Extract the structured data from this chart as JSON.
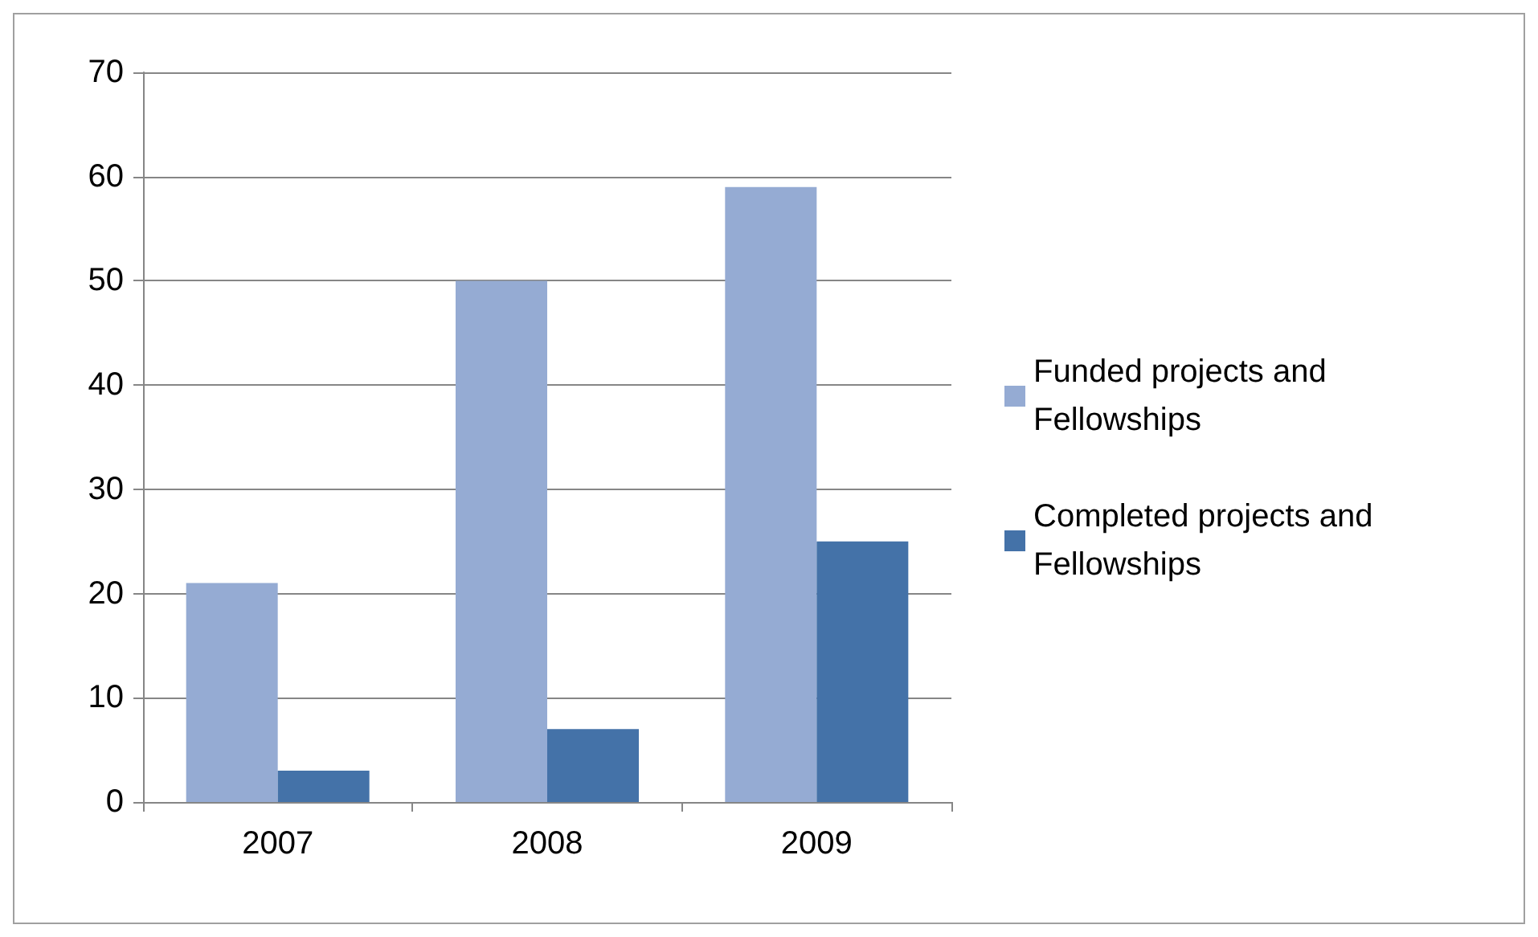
{
  "chart_data": {
    "type": "bar",
    "categories": [
      "2007",
      "2008",
      "2009"
    ],
    "series": [
      {
        "name": "Funded projects and Fellowships",
        "color": "#95abd3",
        "values": [
          21,
          50,
          59
        ]
      },
      {
        "name": "Completed projects and Fellowships",
        "color": "#4472a8",
        "values": [
          3,
          7,
          25
        ]
      }
    ],
    "ylim": [
      0,
      70
    ],
    "yticks": [
      0,
      10,
      20,
      30,
      40,
      50,
      60,
      70
    ],
    "grid": "y",
    "legend": "right"
  }
}
